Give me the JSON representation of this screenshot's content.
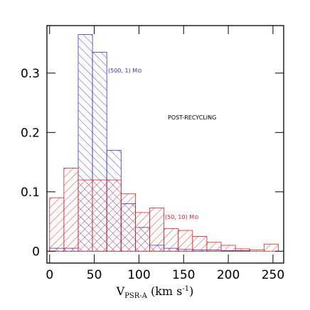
{
  "chart_data": {
    "type": "histogram",
    "bins": [
      0,
      16,
      32,
      48,
      64,
      80,
      96,
      112,
      128,
      144,
      160,
      176,
      192,
      208,
      224,
      240,
      256
    ],
    "series": [
      {
        "name": "(500, 1) M⊙",
        "color": "#3333cc",
        "hatch": "\\",
        "values": [
          0.005,
          0.005,
          0.365,
          0.335,
          0.17,
          0.08,
          0.04,
          0.01,
          0.005,
          0.003,
          0.002,
          0.002,
          0.001,
          0.001,
          0,
          0
        ]
      },
      {
        "name": "(50, 10) M⊙",
        "color": "#dd2222",
        "hatch": "/",
        "values": [
          0.09,
          0.14,
          0.12,
          0.12,
          0.12,
          0.097,
          0.065,
          0.073,
          0.038,
          0.035,
          0.025,
          0.015,
          0.01,
          0.004,
          0.002,
          0.012
        ]
      }
    ],
    "annotation": "POST-RECYCLING",
    "x_label_parts": [
      "V",
      "PSR-A",
      " (km s",
      "-1",
      ")"
    ],
    "xlim": [
      -3,
      262
    ],
    "ylim": [
      -0.02,
      0.38
    ],
    "xticks": [
      0,
      50,
      100,
      150,
      200,
      250
    ],
    "yticks": [
      0,
      0.1,
      0.2,
      0.3
    ]
  }
}
